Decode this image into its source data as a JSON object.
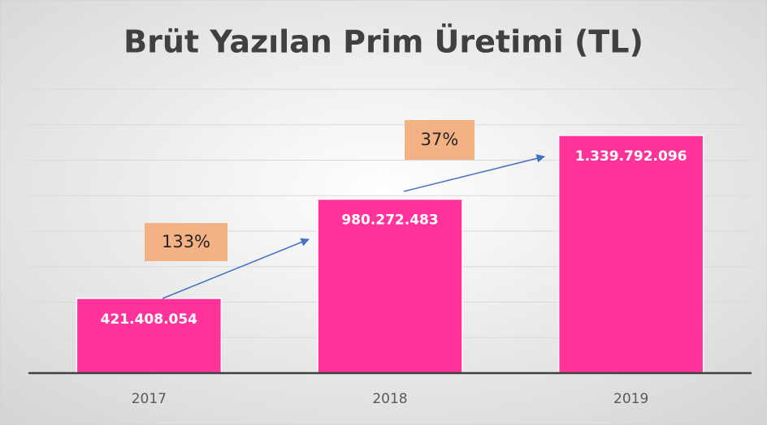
{
  "chart_data": {
    "type": "bar",
    "title": "Brüt Yazılan Prim Üretimi (TL)",
    "categories": [
      "2017",
      "2018",
      "2019"
    ],
    "values": [
      421408054,
      980272483,
      1339792096
    ],
    "value_labels": [
      "421.408.054",
      "980.272.483",
      "1.339.792.096"
    ],
    "color": "#ff3399",
    "ylim": [
      0,
      1600000000
    ],
    "yticks": [
      0,
      200000000,
      400000000,
      600000000,
      800000000,
      1000000000,
      1200000000,
      1400000000,
      1600000000
    ],
    "grid": true,
    "annotations": [
      "133%",
      "37%"
    ]
  }
}
